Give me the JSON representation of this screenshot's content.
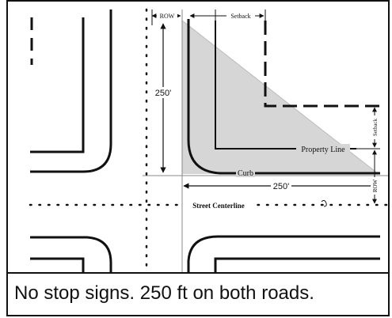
{
  "diagram": {
    "labels": {
      "row_top": "ROW",
      "setback_top": "Setback",
      "vertical_distance": "250'",
      "horizontal_distance": "250'",
      "property_line": "Property Line",
      "curb": "Curb",
      "setback_right": "Setback",
      "row_right": "ROW",
      "street_centerline": "Street Centerline"
    },
    "colors": {
      "sight_triangle": "#d6d6d6",
      "lines": "#111111"
    }
  },
  "caption": "No stop signs. 250 ft on both roads."
}
